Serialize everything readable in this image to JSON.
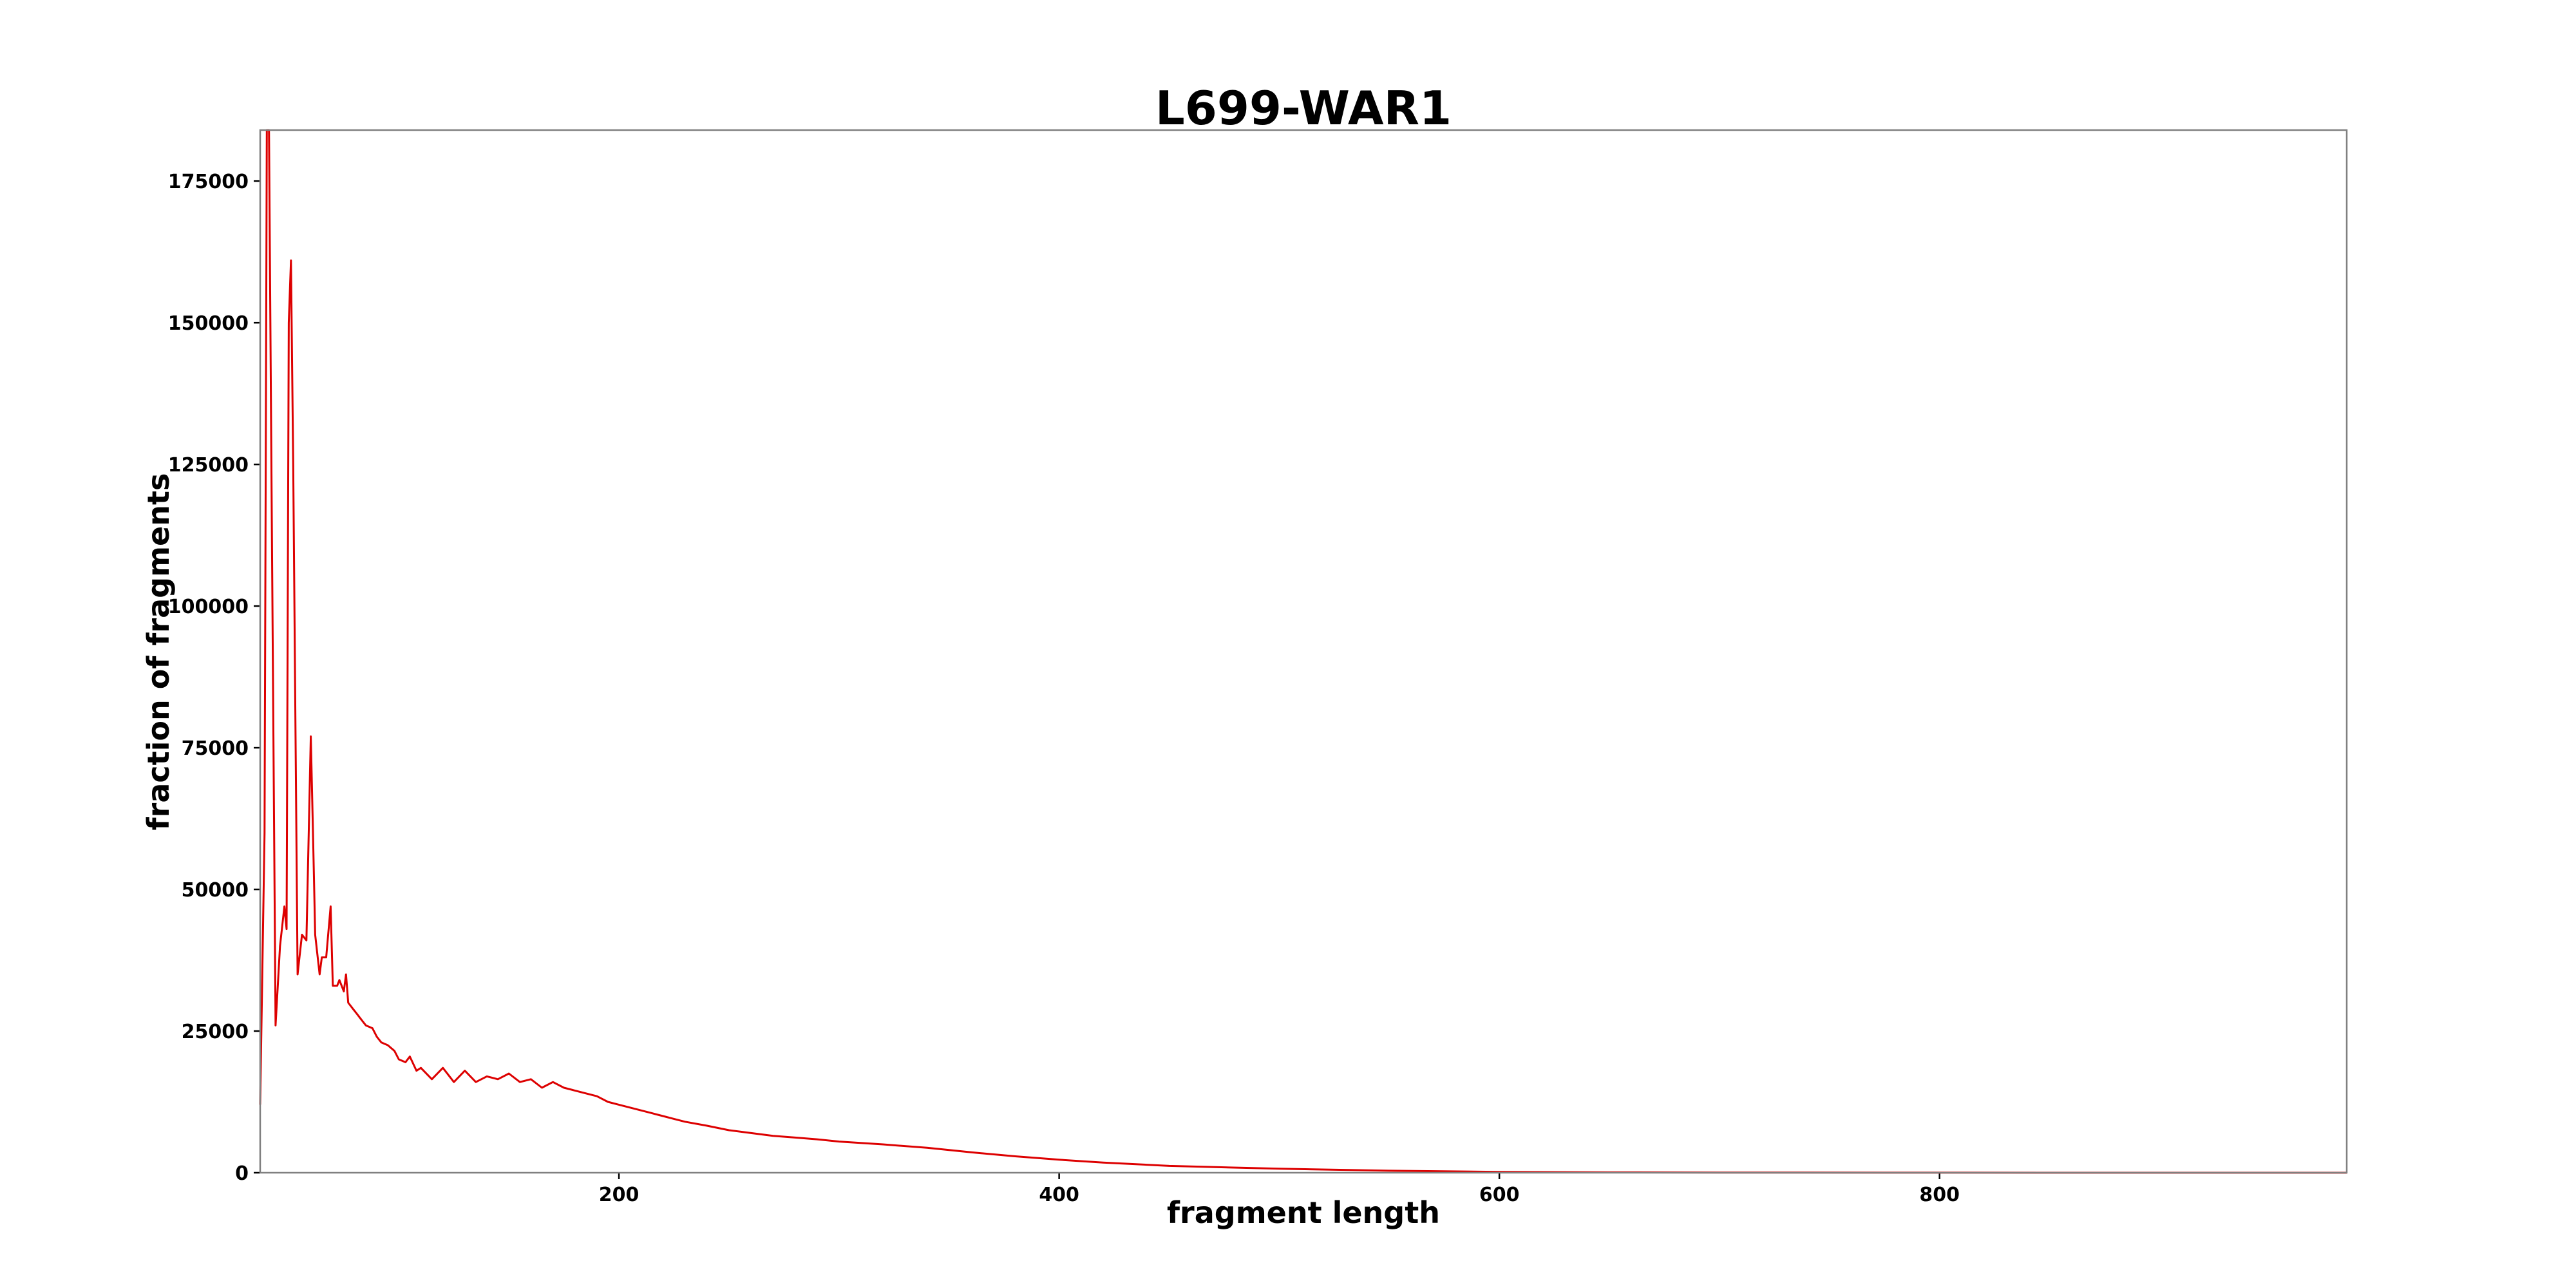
{
  "chart_data": {
    "type": "line",
    "title": "L699-WAR1",
    "xlabel": "fragment length",
    "ylabel": "fraction of fragments",
    "xlim": [
      37,
      985
    ],
    "ylim": [
      0,
      184000
    ],
    "xticks": [
      200,
      400,
      600,
      800
    ],
    "xtick_labels": [
      "200",
      "400",
      "600",
      "800"
    ],
    "yticks": [
      0,
      25000,
      50000,
      75000,
      100000,
      125000,
      150000,
      175000
    ],
    "ytick_labels": [
      "0",
      "25000",
      "50000",
      "75000",
      "100000",
      "125000",
      "150000",
      "175000"
    ],
    "grid": false,
    "line_color": "#dd0000",
    "series": [
      {
        "x": [
          37,
          39,
          40,
          41,
          42,
          44,
          46,
          48,
          49,
          50,
          51,
          52,
          54,
          56,
          58,
          60,
          61,
          62,
          64,
          65,
          67,
          69,
          70,
          72,
          73,
          75,
          76,
          77,
          79,
          81,
          83,
          85,
          88,
          90,
          92,
          95,
          98,
          100,
          103,
          105,
          108,
          110,
          115,
          120,
          125,
          130,
          135,
          140,
          145,
          150,
          155,
          160,
          165,
          170,
          175,
          180,
          185,
          190,
          195,
          200,
          205,
          210,
          215,
          220,
          225,
          230,
          240,
          250,
          260,
          270,
          280,
          290,
          300,
          320,
          340,
          360,
          380,
          400,
          420,
          450,
          500,
          550,
          600,
          650,
          700,
          800,
          900,
          985
        ],
        "values": [
          12000,
          60000,
          184000,
          184000,
          130000,
          26000,
          40000,
          47000,
          43000,
          150000,
          161000,
          125000,
          35000,
          42000,
          41000,
          77000,
          60000,
          42000,
          35000,
          38000,
          38000,
          47000,
          33000,
          33000,
          34000,
          32000,
          35000,
          30000,
          29000,
          28000,
          27000,
          26000,
          25500,
          24000,
          23000,
          22500,
          21500,
          20000,
          19500,
          20500,
          18000,
          18500,
          16500,
          18500,
          16000,
          18000,
          16000,
          17000,
          16500,
          17500,
          16000,
          16500,
          15000,
          16000,
          15000,
          14500,
          14000,
          13500,
          12500,
          12000,
          11500,
          11000,
          10500,
          10000,
          9500,
          9000,
          8300,
          7500,
          7000,
          6500,
          6200,
          5900,
          5500,
          5000,
          4400,
          3600,
          2900,
          2300,
          1800,
          1200,
          700,
          350,
          150,
          60,
          30,
          10,
          5,
          2
        ]
      }
    ]
  }
}
